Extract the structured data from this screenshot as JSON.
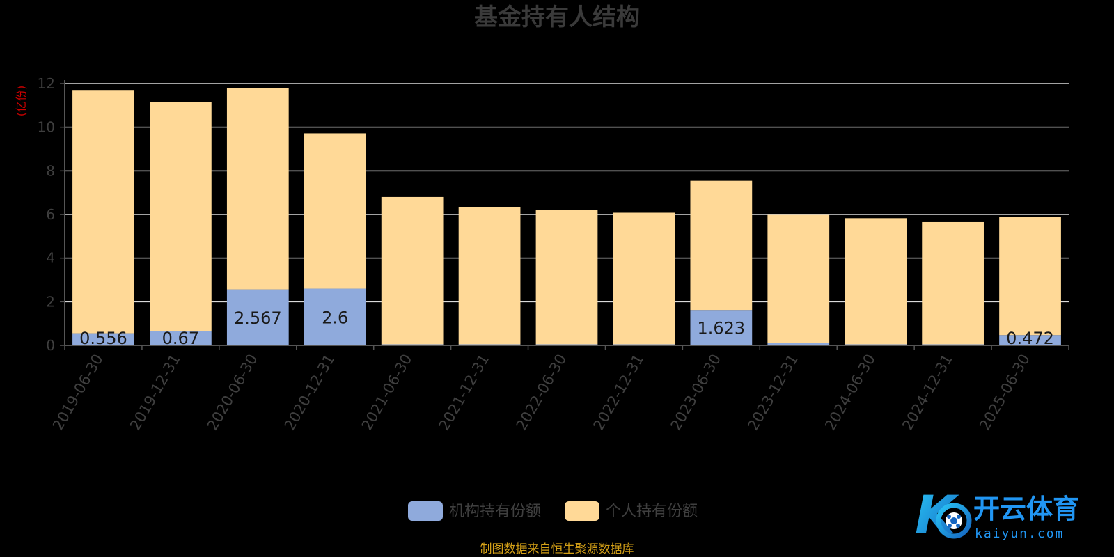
{
  "chart_data": {
    "type": "bar",
    "stacked": true,
    "title": "基金持有人结构",
    "unit_label": "(亿份)",
    "categories": [
      "2019-06-30",
      "2019-12-31",
      "2020-06-30",
      "2020-12-31",
      "2021-06-30",
      "2021-12-31",
      "2022-06-30",
      "2022-12-31",
      "2023-06-30",
      "2023-12-31",
      "2024-06-30",
      "2024-12-31",
      "2025-06-30"
    ],
    "series": [
      {
        "name": "机构持有份额",
        "color": "#8faadc",
        "values": [
          0.556,
          0.67,
          2.567,
          2.6,
          0.05,
          0.05,
          0.05,
          0.05,
          1.623,
          0.1,
          0.05,
          0.05,
          0.472
        ],
        "labels": [
          "0.556",
          "0.67",
          "2.567",
          "2.6",
          "",
          "",
          "",
          "",
          "1.623",
          "",
          "",
          "",
          "0.472"
        ]
      },
      {
        "name": "个人持有份额",
        "color": "#ffd997",
        "values": [
          11.15,
          10.48,
          9.23,
          7.12,
          6.75,
          6.3,
          6.15,
          6.03,
          5.92,
          5.88,
          5.78,
          5.6,
          5.4
        ]
      }
    ],
    "ylim": [
      0,
      12
    ],
    "yticks": [
      0,
      2,
      4,
      6,
      8,
      10,
      12
    ],
    "grid": true,
    "legend_position": "bottom-center",
    "source_note": "制图数据来自恒生聚源数据库"
  },
  "watermark": {
    "brand": "开云体育",
    "domain": "kaiyun.com",
    "logo_letter": "K"
  }
}
